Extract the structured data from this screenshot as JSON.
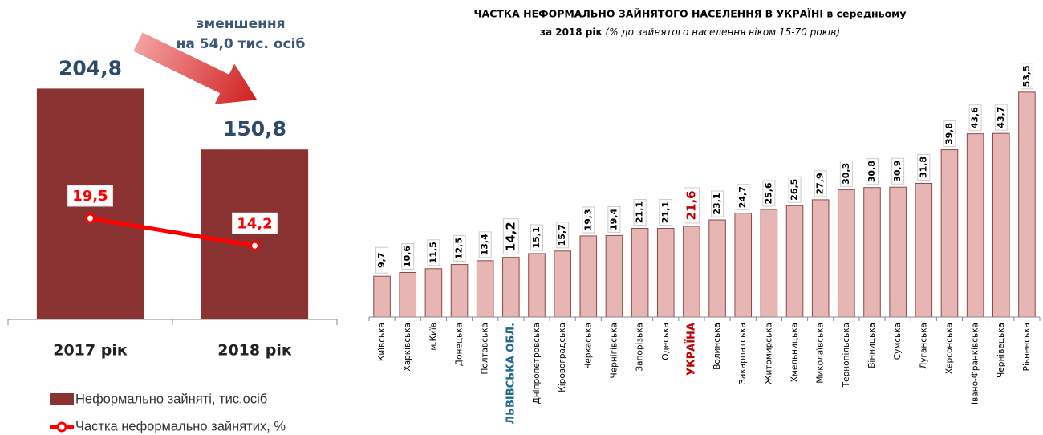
{
  "chart_data": [
    {
      "type": "bar-line",
      "annotation": [
        "зменшення",
        "на 54,0 тис. осіб"
      ],
      "categories": [
        "2017 рік",
        "2018 рік"
      ],
      "ylim": [
        0,
        230
      ],
      "y2lim": [
        0,
        50
      ],
      "series": [
        {
          "name": "Неформально зайняті, тис.осіб",
          "color": "#8b3232",
          "values": [
            204.8,
            150.8
          ],
          "value_labels": [
            "204,8",
            "150,8"
          ]
        },
        {
          "name": "Частка неформально зайнятих, %",
          "color": "#ff0000",
          "axis": "y2",
          "values": [
            19.5,
            14.2
          ],
          "value_labels": [
            "19,5",
            "14,2"
          ]
        }
      ]
    },
    {
      "type": "bar",
      "title": "ЧАСТКА НЕФОРМАЛЬНО ЗАЙНЯТОГО НАСЕЛЕННЯ В  УКРАЇНІ  в середньому",
      "subtitle": "за 2018 рік",
      "subtitle_note": "(% до зайнятого населення віком 15-70 років)",
      "color": "#e8b5b5",
      "ylim": [
        0,
        55
      ],
      "categories": [
        "Київська",
        "Харківська",
        "м.Київ",
        "Донецька",
        "Полтавська",
        "ЛЬВІВСЬКА ОБЛ.",
        "Дніпропетровська",
        "Кіровоградська",
        "Черкаська",
        "Чернігівська",
        "Запорізька",
        "Одеська",
        "УКРАЇНА",
        "Волинська",
        "Закарпатська",
        "Житомирська",
        "Хмельницька",
        "Миколаївська",
        "Тернопільська",
        "Вінницька",
        "Сумська",
        "Луганська",
        "Херсонська",
        "Івано-Франківська",
        "Чернівецька",
        "Рівненська"
      ],
      "values": [
        9.7,
        10.6,
        11.5,
        12.5,
        13.4,
        14.2,
        15.1,
        15.7,
        19.3,
        19.4,
        21.1,
        21.1,
        21.6,
        23.1,
        24.7,
        25.6,
        26.5,
        27.9,
        30.3,
        30.8,
        30.9,
        31.8,
        39.8,
        43.6,
        43.7,
        53.5
      ],
      "value_labels": [
        "9,7",
        "10,6",
        "11,5",
        "12,5",
        "13,4",
        "14,2",
        "15,1",
        "15,7",
        "19,3",
        "19,4",
        "21,1",
        "21,1",
        "21,6",
        "23,1",
        "24,7",
        "25,6",
        "26,5",
        "27,9",
        "30,3",
        "30,8",
        "30,9",
        "31,8",
        "39,8",
        "43,6",
        "43,7",
        "53,5"
      ],
      "label_colors": [
        "#000000",
        "#000000",
        "#000000",
        "#000000",
        "#000000",
        "#1f6a8a",
        "#000000",
        "#000000",
        "#000000",
        "#000000",
        "#000000",
        "#000000",
        "#c00000",
        "#000000",
        "#000000",
        "#000000",
        "#000000",
        "#000000",
        "#000000",
        "#000000",
        "#000000",
        "#000000",
        "#000000",
        "#000000",
        "#000000",
        "#000000"
      ],
      "value_label_colors": [
        "#000000",
        "#000000",
        "#000000",
        "#000000",
        "#000000",
        "#000000",
        "#000000",
        "#000000",
        "#000000",
        "#000000",
        "#000000",
        "#000000",
        "#c00000",
        "#000000",
        "#000000",
        "#000000",
        "#000000",
        "#000000",
        "#000000",
        "#000000",
        "#000000",
        "#000000",
        "#000000",
        "#000000",
        "#000000",
        "#000000"
      ]
    }
  ]
}
